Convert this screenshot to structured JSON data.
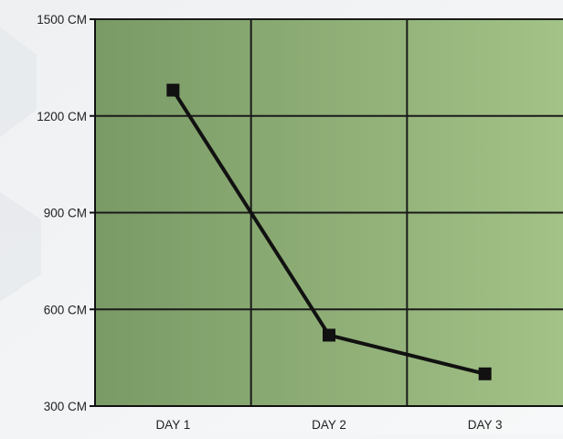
{
  "chart_data": {
    "type": "line",
    "categories": [
      "DAY 1",
      "DAY 2",
      "DAY 3"
    ],
    "values": [
      1280,
      520,
      400
    ],
    "y_ticks": [
      300,
      600,
      900,
      1200,
      1500
    ],
    "y_tick_labels": [
      "300 CM",
      "600 CM",
      "900 CM",
      "1200 CM",
      "1500 CM"
    ],
    "ylim": [
      300,
      1500
    ],
    "grid": true,
    "marker": "square",
    "colors": {
      "line": "#111111",
      "plot_bg_start": "#7a9a66",
      "plot_bg_end": "#a3c287",
      "grid": "#1a1a1a"
    }
  }
}
